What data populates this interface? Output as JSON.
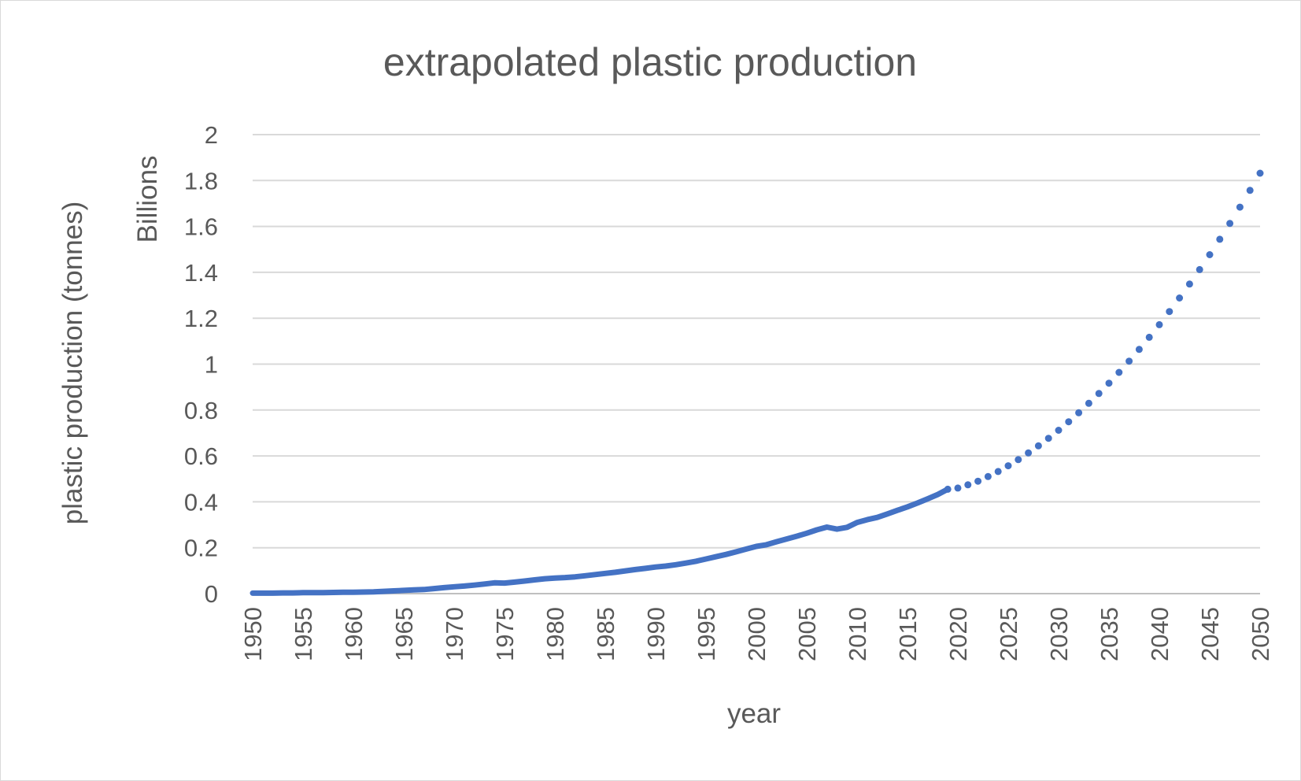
{
  "chart_data": {
    "type": "line",
    "title": "extrapolated plastic production",
    "xlabel": "year",
    "ylabel": "plastic production (tonnes)",
    "y_unit_label": "Billions",
    "xlim": [
      1950,
      2050
    ],
    "ylim": [
      0,
      2
    ],
    "x_ticks": [
      1950,
      1955,
      1960,
      1965,
      1970,
      1975,
      1980,
      1985,
      1990,
      1995,
      2000,
      2005,
      2010,
      2015,
      2020,
      2025,
      2030,
      2035,
      2040,
      2045,
      2050
    ],
    "y_ticks": [
      0,
      0.2,
      0.4,
      0.6,
      0.8,
      1,
      1.2,
      1.4,
      1.6,
      1.8,
      2
    ],
    "y_tick_labels": [
      "0",
      "0.2",
      "0.4",
      "0.6",
      "0.8",
      "1",
      "1.2",
      "1.4",
      "1.6",
      "1.8",
      "2"
    ],
    "grid": true,
    "legend": "none",
    "series": [
      {
        "style": "solid",
        "color": "#4472c4",
        "x": [
          1950,
          1951,
          1952,
          1953,
          1954,
          1955,
          1956,
          1957,
          1958,
          1959,
          1960,
          1961,
          1962,
          1963,
          1964,
          1965,
          1966,
          1967,
          1968,
          1969,
          1970,
          1971,
          1972,
          1973,
          1974,
          1975,
          1976,
          1977,
          1978,
          1979,
          1980,
          1981,
          1982,
          1983,
          1984,
          1985,
          1986,
          1987,
          1988,
          1989,
          1990,
          1991,
          1992,
          1993,
          1994,
          1995,
          1996,
          1997,
          1998,
          1999,
          2000,
          2001,
          2002,
          2003,
          2004,
          2005,
          2006,
          2007,
          2008,
          2009,
          2010,
          2011,
          2012,
          2013,
          2014,
          2015,
          2016,
          2017,
          2018,
          2019
        ],
        "y": [
          0.002,
          0.002,
          0.002,
          0.003,
          0.003,
          0.004,
          0.004,
          0.004,
          0.005,
          0.006,
          0.006,
          0.007,
          0.008,
          0.01,
          0.012,
          0.014,
          0.016,
          0.018,
          0.022,
          0.026,
          0.03,
          0.033,
          0.037,
          0.042,
          0.047,
          0.046,
          0.05,
          0.055,
          0.06,
          0.065,
          0.068,
          0.07,
          0.073,
          0.078,
          0.083,
          0.088,
          0.093,
          0.099,
          0.105,
          0.11,
          0.116,
          0.12,
          0.126,
          0.133,
          0.141,
          0.151,
          0.161,
          0.171,
          0.182,
          0.194,
          0.206,
          0.213,
          0.226,
          0.238,
          0.25,
          0.263,
          0.278,
          0.29,
          0.281,
          0.289,
          0.31,
          0.322,
          0.332,
          0.347,
          0.363,
          0.378,
          0.395,
          0.413,
          0.432,
          0.455
        ]
      },
      {
        "style": "dotted",
        "color": "#4472c4",
        "x": [
          2019,
          2020,
          2021,
          2022,
          2023,
          2024,
          2025,
          2026,
          2027,
          2028,
          2029,
          2030,
          2031,
          2032,
          2033,
          2034,
          2035,
          2036,
          2037,
          2038,
          2039,
          2040,
          2041,
          2042,
          2043,
          2044,
          2045,
          2046,
          2047,
          2048,
          2049,
          2050
        ],
        "y": [
          0.455,
          0.46,
          0.474,
          0.49,
          0.51,
          0.532,
          0.557,
          0.584,
          0.613,
          0.644,
          0.677,
          0.712,
          0.749,
          0.788,
          0.829,
          0.872,
          0.917,
          0.964,
          1.013,
          1.064,
          1.117,
          1.172,
          1.229,
          1.288,
          1.349,
          1.412,
          1.477,
          1.544,
          1.613,
          1.684,
          1.757,
          1.832
        ]
      }
    ]
  }
}
